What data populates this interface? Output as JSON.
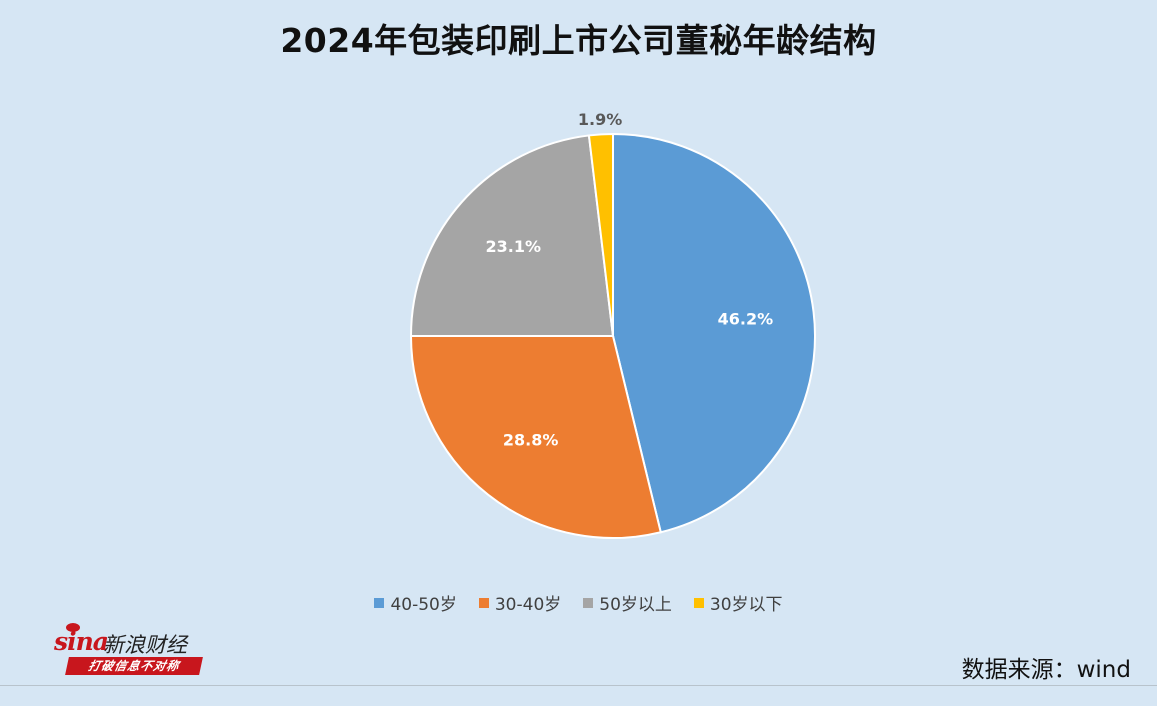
{
  "chart_data": {
    "type": "pie",
    "title": "2024年包装印刷上市公司董秘年龄结构",
    "series": [
      {
        "name": "40-50岁",
        "value": 46.2,
        "label": "46.2%",
        "color": "#5b9bd5"
      },
      {
        "name": "30-40岁",
        "value": 28.8,
        "label": "28.8%",
        "color": "#ed7d31"
      },
      {
        "name": "50岁以上",
        "value": 23.1,
        "label": "23.1%",
        "color": "#a5a5a5"
      },
      {
        "name": "30岁以下",
        "value": 1.9,
        "label": "1.9%",
        "color": "#ffc000"
      }
    ],
    "legend_placement": "bottom"
  },
  "logo": {
    "brand": "sina",
    "name": "新浪财经",
    "slogan": "打破信息不对称"
  },
  "source": "数据来源：wind"
}
